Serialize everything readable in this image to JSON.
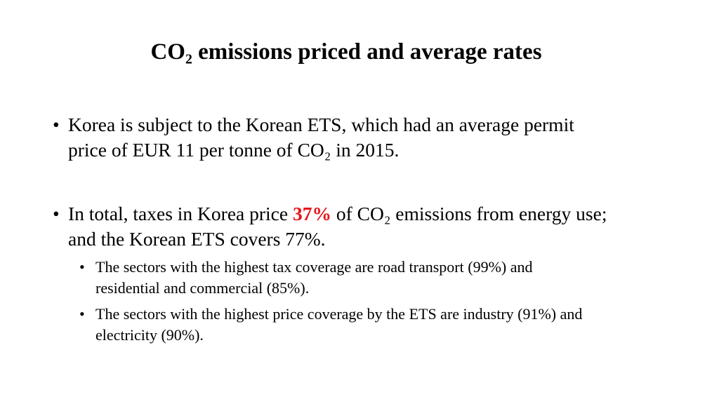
{
  "slide": {
    "title": "CO₂ emissions priced and average rates",
    "bullets": [
      {
        "marker": "•",
        "lines": [
          "Korea is subject to the Korean ETS, which had an average permit",
          "price of EUR 11 per tonne of CO₂ in 2015."
        ]
      },
      {
        "marker": "•",
        "line1_before": "In total, taxes in Korea price ",
        "line1_highlight": "37%",
        "line1_after": " of CO₂ emissions from energy use;",
        "line2": "and the Korean ETS covers 77%.",
        "highlight_color": "#e8141b",
        "sub_bullets": [
          {
            "marker": "•",
            "lines": [
              "The sectors with the highest tax coverage are road transport (99%) and",
              "residential and commercial (85%)."
            ]
          },
          {
            "marker": "•",
            "lines": [
              "The sectors with the highest price coverage by the ETS are industry (91%) and",
              "electricity (90%)."
            ]
          }
        ]
      }
    ]
  }
}
